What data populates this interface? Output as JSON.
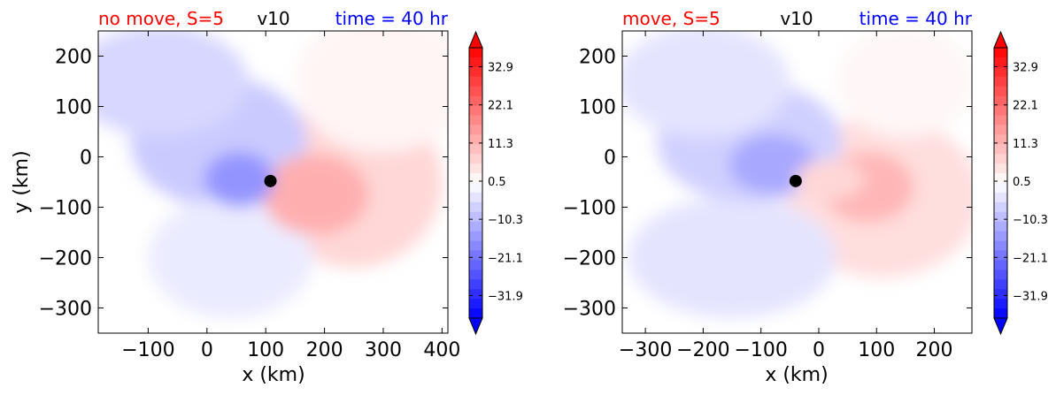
{
  "colors": {
    "neg_max": "#0000ff",
    "neutral": "#ffffff",
    "pos_max": "#ff0000",
    "title_left": "#ff0000",
    "title_mid": "#000000",
    "title_right": "#0000ff",
    "marker": "#000000"
  },
  "chart_data": [
    {
      "type": "heatmap",
      "title_left": "no move, S=5",
      "title_mid": "v10",
      "title_right": "time = 40 hr",
      "xlabel": "x (km)",
      "ylabel": "y (km)",
      "xlim": [
        -185,
        410
      ],
      "ylim": [
        -350,
        250
      ],
      "xticks": [
        -100,
        0,
        100,
        200,
        300,
        400
      ],
      "yticks": [
        -300,
        -200,
        -100,
        0,
        100,
        200
      ],
      "center_marker": {
        "x": 108,
        "y": -48
      },
      "field": {
        "negative_lobes": [
          {
            "x": 55,
            "y": -45,
            "value": -16,
            "rx": 60,
            "ry": 55
          },
          {
            "x": 20,
            "y": 30,
            "value": -8,
            "rx": 150,
            "ry": 130
          },
          {
            "x": -80,
            "y": 150,
            "value": -6,
            "rx": 150,
            "ry": 110
          },
          {
            "x": 40,
            "y": -200,
            "value": -3,
            "rx": 140,
            "ry": 120
          }
        ],
        "positive_lobes": [
          {
            "x": 185,
            "y": -75,
            "value": 12,
            "rx": 90,
            "ry": 80
          },
          {
            "x": 250,
            "y": -50,
            "value": 6,
            "rx": 150,
            "ry": 170
          },
          {
            "x": 300,
            "y": 150,
            "value": 1.5,
            "rx": 150,
            "ry": 140
          }
        ]
      },
      "colorbar": {
        "ticks": [
          32.9,
          22.1,
          11.3,
          0.5,
          -10.3,
          -21.1,
          -31.9
        ],
        "tick_labels": [
          "32.9",
          "22.1",
          "11.3",
          "0.5",
          "−10.3",
          "−21.1",
          "−31.9"
        ],
        "extend": "both"
      }
    },
    {
      "type": "heatmap",
      "title_left": "move, S=5",
      "title_mid": "v10",
      "title_right": "time = 40 hr",
      "xlabel": "x (km)",
      "ylabel": "",
      "xlim": [
        -340,
        265
      ],
      "ylim": [
        -350,
        250
      ],
      "xticks": [
        -300,
        -200,
        -100,
        0,
        100,
        200
      ],
      "yticks": [
        -300,
        -200,
        -100,
        0,
        100,
        200
      ],
      "center_marker": {
        "x": -40,
        "y": -48
      },
      "field": {
        "negative_lobes": [
          {
            "x": -80,
            "y": -15,
            "value": -13,
            "rx": 75,
            "ry": 60
          },
          {
            "x": -120,
            "y": 30,
            "value": -7,
            "rx": 160,
            "ry": 120
          },
          {
            "x": -200,
            "y": 150,
            "value": -4,
            "rx": 150,
            "ry": 110
          },
          {
            "x": -150,
            "y": -200,
            "value": -4,
            "rx": 180,
            "ry": 120
          }
        ],
        "positive_lobes": [
          {
            "x": 85,
            "y": -60,
            "value": 11,
            "rx": 80,
            "ry": 70
          },
          {
            "x": 20,
            "y": -45,
            "value": 6,
            "rx": 60,
            "ry": 40
          },
          {
            "x": 110,
            "y": -80,
            "value": 5,
            "rx": 170,
            "ry": 160
          },
          {
            "x": 150,
            "y": 150,
            "value": 1.2,
            "rx": 120,
            "ry": 110
          }
        ]
      },
      "colorbar": {
        "ticks": [
          32.9,
          22.1,
          11.3,
          0.5,
          -10.3,
          -21.1,
          -31.9
        ],
        "tick_labels": [
          "32.9",
          "22.1",
          "11.3",
          "0.5",
          "−10.3",
          "−21.1",
          "−31.9"
        ],
        "extend": "both"
      }
    }
  ]
}
